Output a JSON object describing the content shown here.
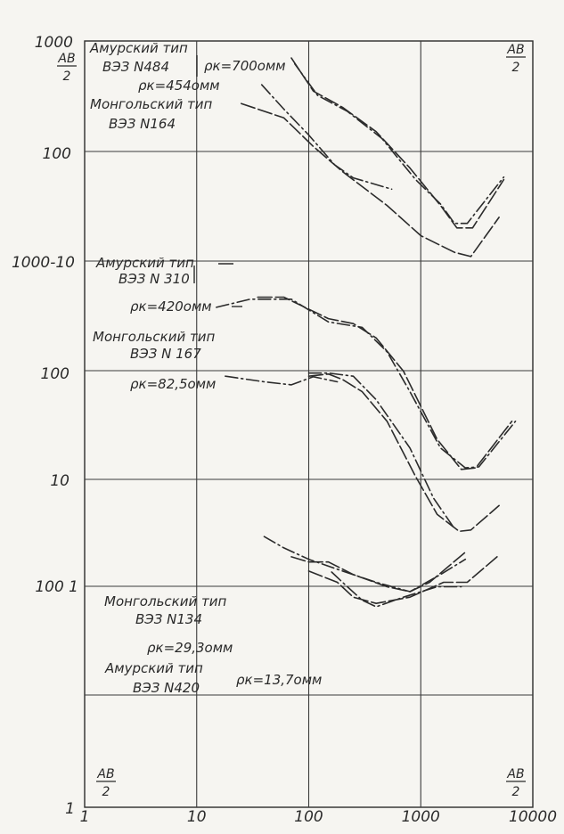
{
  "chart_data": {
    "type": "line",
    "x_scale": "log",
    "y_scale": "log",
    "x_range": [
      1,
      10000
    ],
    "x_ticks": [
      "1",
      "10",
      "100",
      "1000",
      "10000"
    ],
    "y_tick_labels": [
      "1000",
      "100",
      "1000-10",
      "100",
      "10",
      "100 1",
      "1"
    ],
    "axis_labels": {
      "top_left": {
        "num": "AB",
        "den": "2"
      },
      "top_right": {
        "num": "AB",
        "den": "2"
      },
      "bottom_left": {
        "num": "AB",
        "den": "2"
      },
      "bottom_right": {
        "num": "AB",
        "den": "2"
      }
    },
    "panels": [
      {
        "y_range": [
          10,
          1000
        ],
        "annotations": [
          "Амурский тип",
          "ВЭЗ N484",
          "ρк=700омм",
          "ρк=454омм",
          "Монгольский тип",
          "ВЭЗ N164"
        ],
        "series": [
          {
            "style": "long-dash",
            "points": [
              [
                70,
                700
              ],
              [
                110,
                350
              ],
              [
                200,
                250
              ],
              [
                400,
                150
              ],
              [
                800,
                70
              ],
              [
                1500,
                32
              ],
              [
                2100,
                20
              ],
              [
                2900,
                20
              ],
              [
                5500,
                55
              ]
            ]
          },
          {
            "style": "dash-dot",
            "points": [
              [
                75,
                620
              ],
              [
                120,
                320
              ],
              [
                220,
                230
              ],
              [
                450,
                130
              ],
              [
                900,
                55
              ],
              [
                1500,
                33
              ],
              [
                2000,
                22
              ],
              [
                2600,
                22
              ],
              [
                5500,
                58
              ]
            ]
          },
          {
            "style": "dash-dot",
            "points": [
              [
                38,
                400
              ],
              [
                60,
                240
              ],
              [
                100,
                140
              ],
              [
                170,
                75
              ],
              [
                250,
                57
              ],
              [
                550,
                45
              ]
            ]
          },
          {
            "style": "long-dash",
            "points": [
              [
                25,
                270
              ],
              [
                60,
                200
              ],
              [
                110,
                110
              ],
              [
                200,
                65
              ],
              [
                500,
                32
              ],
              [
                1000,
                17
              ],
              [
                2000,
                12
              ],
              [
                2800,
                11
              ],
              [
                5000,
                25
              ]
            ]
          }
        ]
      },
      {
        "y_range": [
          1,
          100
        ],
        "annotations": [
          "Амурский тип",
          "ВЭЗ N 310",
          "ρк=420омм",
          "Монгольский тип",
          "ВЭЗ N 167",
          "ρк=82,5омм"
        ],
        "series": [
          {
            "style": "long-dash",
            "points": [
              [
                35,
                47
              ],
              [
                60,
                47
              ],
              [
                150,
                30
              ],
              [
                250,
                27
              ],
              [
                400,
                20
              ],
              [
                700,
                10
              ],
              [
                1400,
                2.4
              ],
              [
                2300,
                1.28
              ],
              [
                3100,
                1.32
              ],
              [
                6500,
                3.5
              ]
            ]
          },
          {
            "style": "dash-dot",
            "points": [
              [
                15,
                38
              ],
              [
                30,
                45
              ],
              [
                70,
                45
              ],
              [
                150,
                28
              ],
              [
                300,
                25
              ],
              [
                500,
                15
              ],
              [
                800,
                6.5
              ],
              [
                1500,
                2.0
              ],
              [
                2500,
                1.32
              ],
              [
                3300,
                1.35
              ],
              [
                7000,
                3.5
              ]
            ]
          },
          {
            "style": "dash-dot",
            "points": [
              [
                18,
                9.0
              ],
              [
                40,
                8.0
              ],
              [
                70,
                7.5
              ],
              [
                110,
                8.9
              ],
              [
                180,
                8.0
              ]
            ]
          },
          {
            "style": "long-dash",
            "points": [
              [
                100,
                9.0
              ],
              [
                150,
                9.4
              ],
              [
                200,
                8.4
              ],
              [
                300,
                6.5
              ],
              [
                500,
                3.5
              ],
              [
                900,
                1.1
              ],
              [
                1400,
                0.5
              ],
              [
                2200,
                0.35
              ],
              [
                2800,
                0.36
              ],
              [
                5000,
                0.6
              ]
            ]
          },
          {
            "style": "dash-dot",
            "points": [
              [
                100,
                9.6
              ],
              [
                150,
                9.6
              ],
              [
                250,
                9.0
              ],
              [
                400,
                5.5
              ],
              [
                800,
                2.0
              ],
              [
                1300,
                0.7
              ],
              [
                2000,
                0.37
              ]
            ]
          }
        ]
      },
      {
        "y_range": [
          1,
          100
        ],
        "annotations": [
          "Монгольский тип",
          "ВЭЗ N134",
          "ρк=29,3омм",
          "Амурский тип",
          "ВЭЗ N420",
          "ρк=13,7омм"
        ],
        "series": [
          {
            "style": "dash-dot",
            "points": [
              [
                40,
                29.3
              ],
              [
                60,
                23
              ],
              [
                100,
                18
              ],
              [
                200,
                14
              ],
              [
                400,
                11
              ],
              [
                800,
                9
              ],
              [
                1500,
                13
              ],
              [
                2500,
                18
              ]
            ]
          },
          {
            "style": "long-dash",
            "points": [
              [
                70,
                19
              ],
              [
                100,
                17
              ],
              [
                150,
                17
              ],
              [
                250,
                13
              ],
              [
                500,
                10
              ],
              [
                800,
                9
              ],
              [
                1200,
                11
              ],
              [
                2500,
                21
              ]
            ]
          },
          {
            "style": "long-dash",
            "points": [
              [
                100,
                14
              ],
              [
                180,
                11
              ],
              [
                250,
                8
              ],
              [
                400,
                7
              ],
              [
                800,
                8
              ],
              [
                1600,
                11
              ],
              [
                2600,
                11
              ],
              [
                4800,
                19
              ]
            ]
          },
          {
            "style": "dash-dot",
            "points": [
              [
                160,
                13.7
              ],
              [
                200,
                11
              ],
              [
                300,
                7.5
              ],
              [
                400,
                6.5
              ],
              [
                700,
                8
              ],
              [
                1400,
                10
              ],
              [
                2300,
                10
              ]
            ]
          }
        ]
      }
    ]
  }
}
